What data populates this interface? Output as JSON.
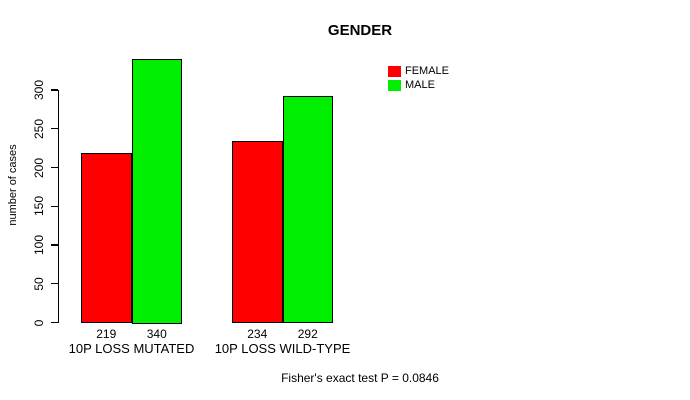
{
  "chart_data": {
    "type": "bar",
    "title": "GENDER",
    "xlabel": "",
    "ylabel": "number of cases",
    "categories": [
      "10P LOSS MUTATED",
      "10P LOSS WILD-TYPE"
    ],
    "series": [
      {
        "name": "FEMALE",
        "color": "#FF0000",
        "values": [
          219,
          234
        ]
      },
      {
        "name": "MALE",
        "color": "#00EE00",
        "values": [
          340,
          292
        ]
      }
    ],
    "yticks": [
      0,
      50,
      100,
      150,
      200,
      250,
      300
    ],
    "ylim": [
      0,
      300
    ],
    "grid": false,
    "legend_position": "top-right-inside",
    "bar_value_labels": [
      "219",
      "340",
      "234",
      "292"
    ],
    "annotation": "Fisher's exact test P = 0.0846",
    "colors": {
      "axis": "#000000",
      "background": "#FFFFFF",
      "text": "#000000"
    }
  }
}
